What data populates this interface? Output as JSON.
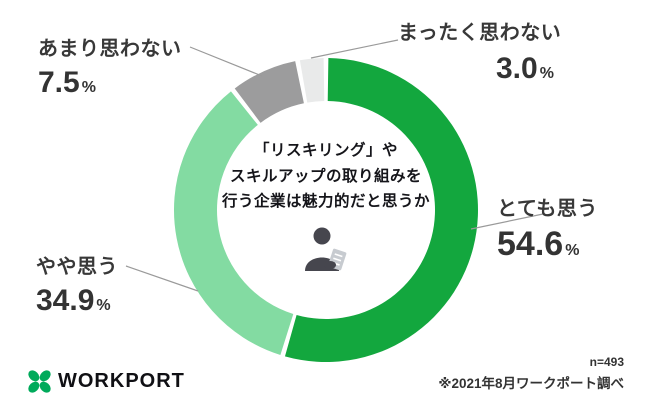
{
  "chart_data": {
    "type": "pie",
    "subtype": "donut",
    "title": "「リスキリング」やスキルアップの取り組みを行う企業は魅力的だと思うか",
    "categories": [
      "とても思う",
      "やや思う",
      "あまり思わない",
      "まったく思わない"
    ],
    "values": [
      54.6,
      34.9,
      7.5,
      3.0
    ],
    "unit": "%",
    "colors": [
      "#13a73e",
      "#83dba2",
      "#9c9c9d",
      "#e9eaea"
    ],
    "start_angle_deg": 0,
    "direction": "clockwise",
    "legend": "callout-labels-with-leader-lines",
    "sample_note": "n=493",
    "source_note": "※2021年8月ワークポート調べ"
  },
  "center": {
    "title_lines": [
      "「リスキリング」や",
      "スキルアップの取り組みを",
      "行う企業は魅力的だと思うか"
    ]
  },
  "callouts": {
    "very": {
      "label": "とても思う",
      "value": "54.6",
      "unit": "%"
    },
    "somewhat": {
      "label": "やや思う",
      "value": "34.9",
      "unit": "%"
    },
    "not_much": {
      "label": "あまり思わない",
      "value": "7.5",
      "unit": "%"
    },
    "not_at_all": {
      "label": "まったく思わない",
      "value": "3.0",
      "unit": "%"
    }
  },
  "footer": {
    "brand": "WORKPORT",
    "brand_color": "#00aa5b",
    "sample": "n=493",
    "source": "※2021年8月ワークポート調べ"
  }
}
